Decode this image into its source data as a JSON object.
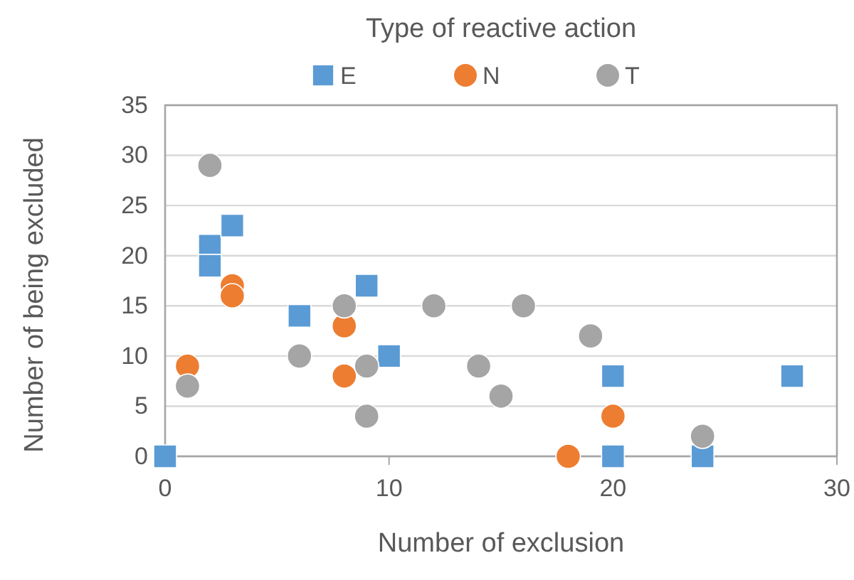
{
  "chart_data": {
    "type": "scatter",
    "xlabel": "Number of exclusion",
    "ylabel": "Number of being excluded",
    "legend_title": "Type of reactive action",
    "legend": "top",
    "grid": "y",
    "xlim": [
      0,
      30
    ],
    "xticks": [
      0,
      10,
      20,
      30
    ],
    "ylim": [
      0,
      35
    ],
    "yticks": [
      0,
      5,
      10,
      15,
      20,
      25,
      30,
      35
    ],
    "series": [
      {
        "name": "E",
        "color": "#5b9bd5",
        "marker": "square",
        "x": [
          0,
          2,
          2,
          3,
          6,
          9,
          10,
          20,
          20,
          24,
          28
        ],
        "values": [
          0,
          21,
          19,
          23,
          14,
          17,
          10,
          8,
          0,
          0,
          8
        ]
      },
      {
        "name": "N",
        "color": "#ed7d31",
        "marker": "circle",
        "x": [
          1,
          3,
          3,
          8,
          8,
          18,
          20
        ],
        "values": [
          9,
          17,
          16,
          13,
          8,
          0,
          4
        ]
      },
      {
        "name": "T",
        "color": "#a5a5a5",
        "marker": "circle",
        "x": [
          1,
          2,
          6,
          8,
          9,
          9,
          12,
          14,
          15,
          16,
          19,
          24
        ],
        "values": [
          7,
          29,
          10,
          15,
          9,
          4,
          15,
          9,
          6,
          15,
          12,
          2
        ]
      }
    ]
  }
}
